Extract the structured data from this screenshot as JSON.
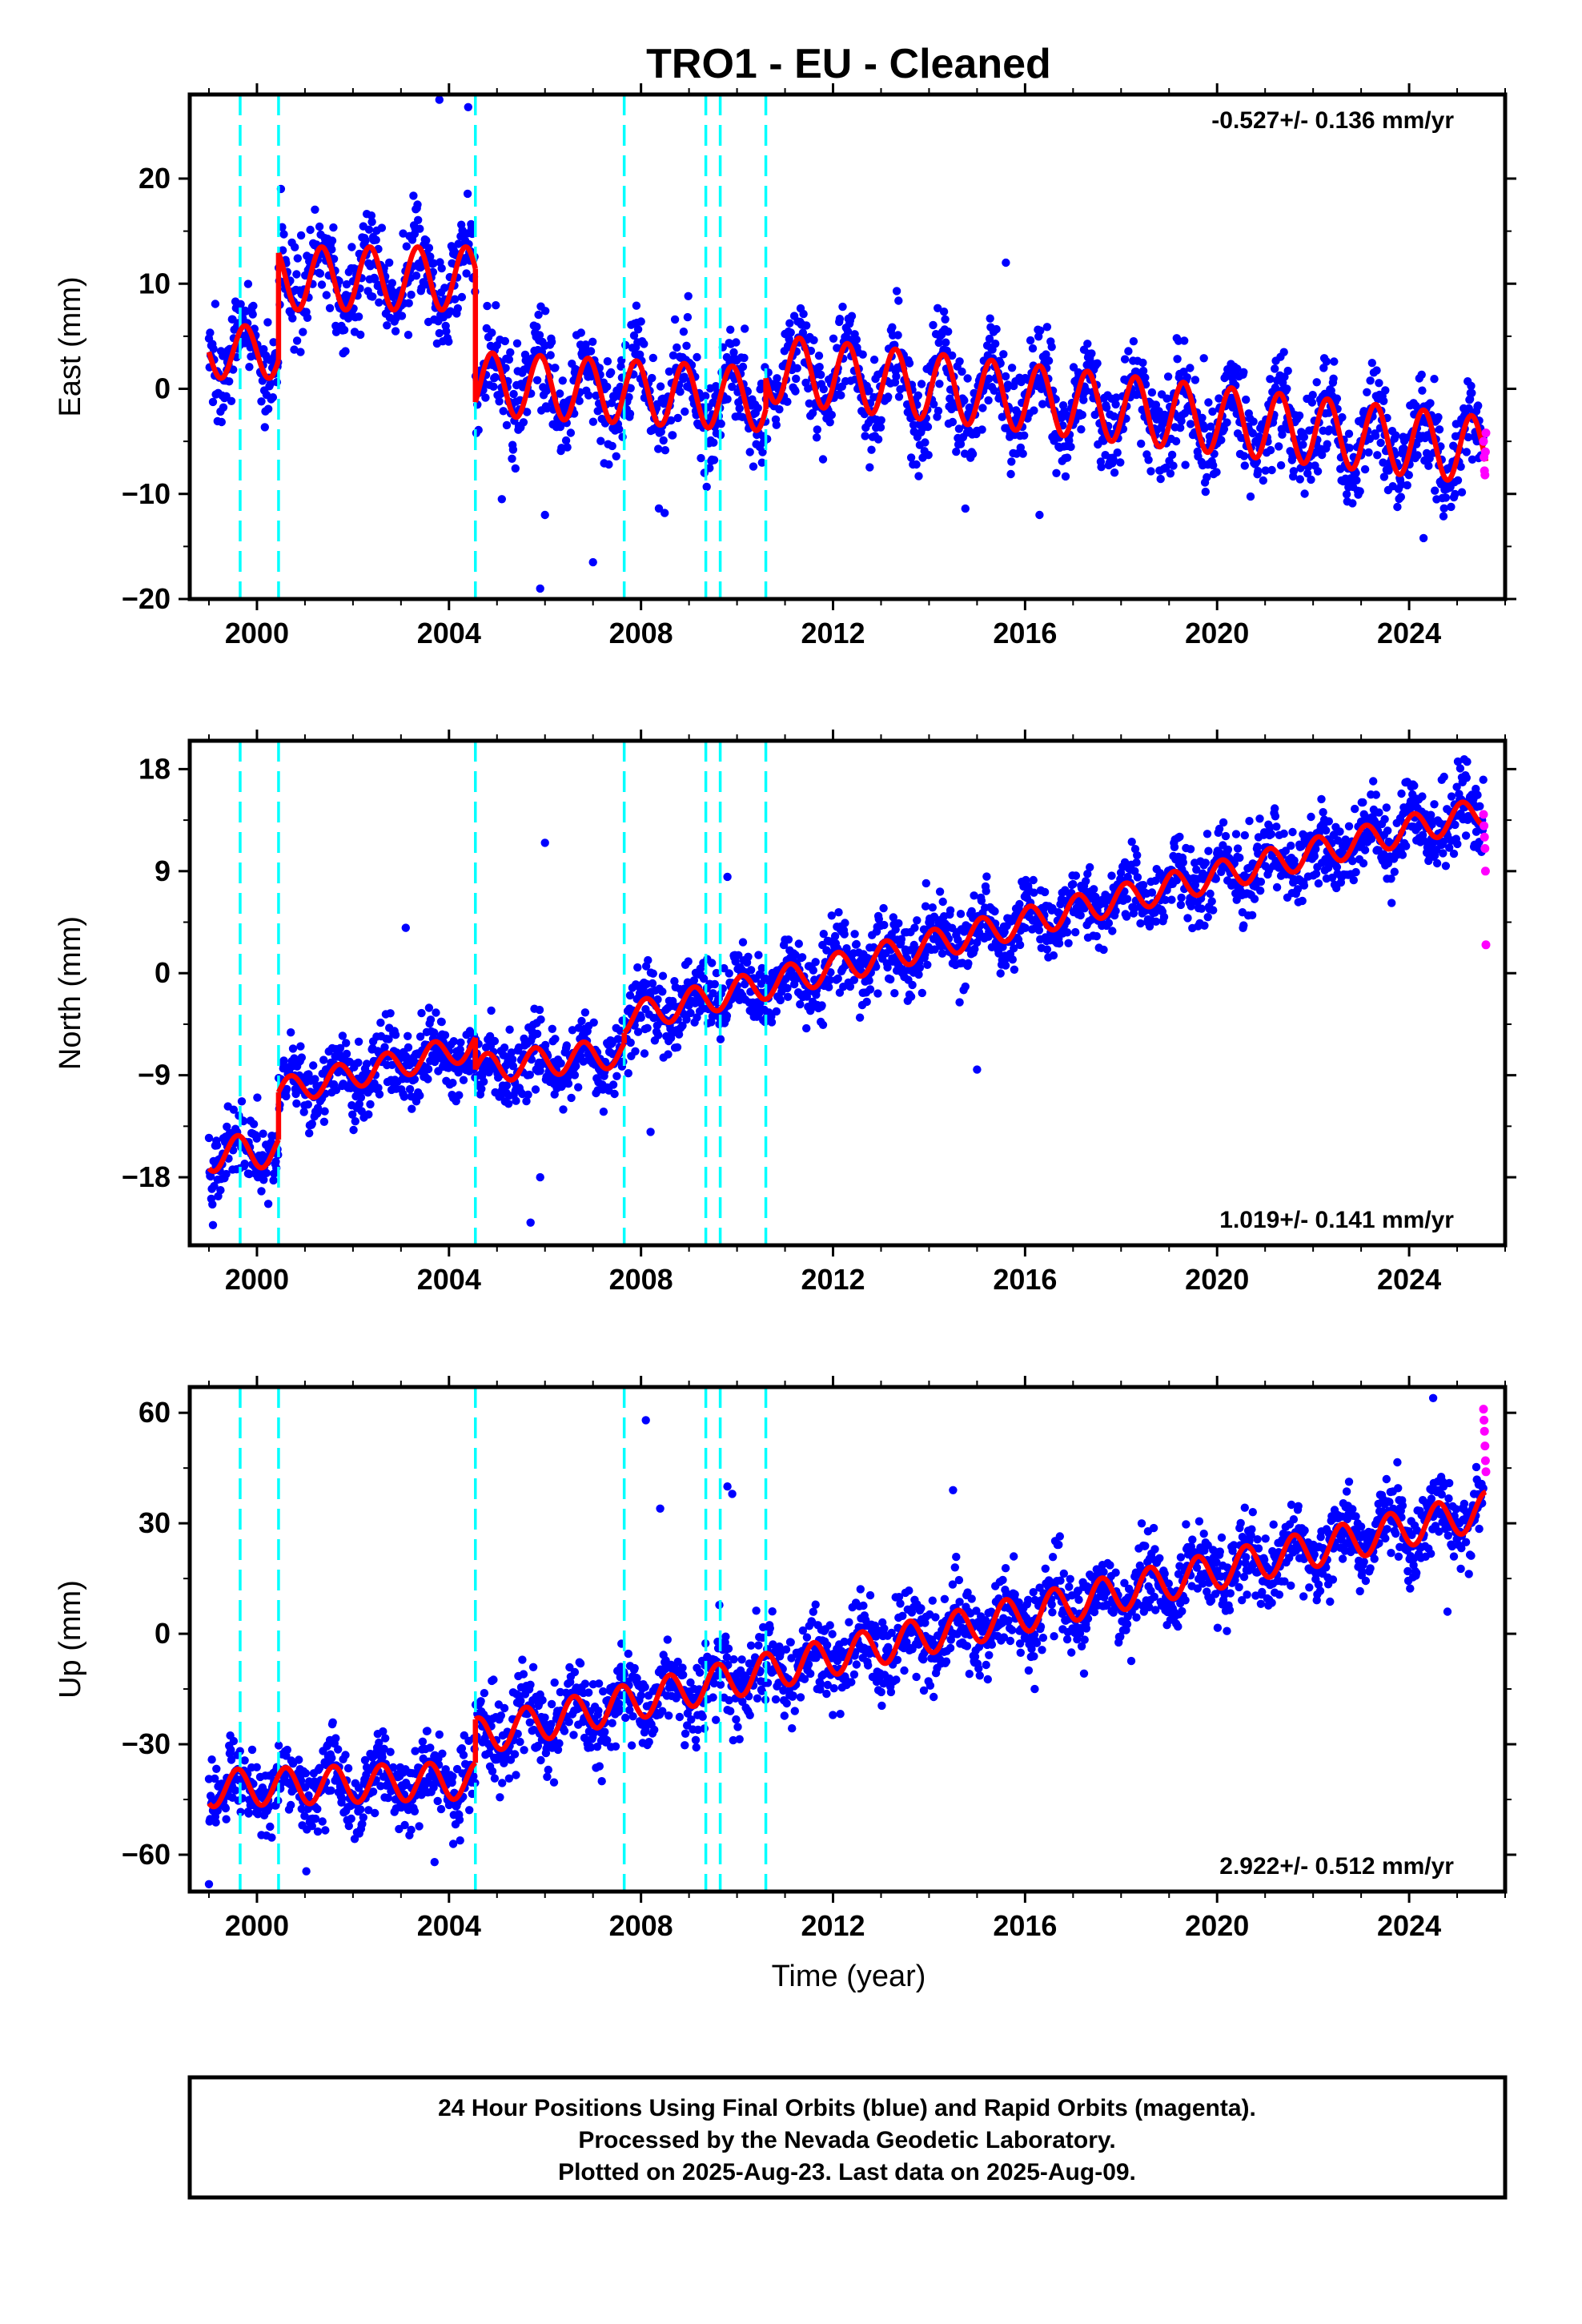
{
  "title": "TRO1  - EU - Cleaned",
  "xlabel": "Time (year)",
  "footer": {
    "line1": "24 Hour Positions Using Final Orbits (blue) and Rapid Orbits (magenta).",
    "line2": "Processed by the Nevada Geodetic Laboratory.",
    "line3": "Plotted on 2025-Aug-23. Last data on 2025-Aug-09."
  },
  "colors": {
    "final_orbits": "#0000ff",
    "rapid_orbits": "#ff00ff",
    "model": "#ff0000",
    "steps": "#00ffff"
  },
  "chart_data": [
    {
      "type": "scatter",
      "name": "east",
      "ylabel": "East (mm)",
      "rate": "-0.527+/- 0.136 mm/yr",
      "rate_position": "top-right",
      "xlim": [
        1998.6,
        2026.0
      ],
      "ylim": [
        -20,
        28
      ],
      "xticks": [
        2000,
        2004,
        2008,
        2012,
        2016,
        2020,
        2024
      ],
      "yticks": [
        -20,
        -10,
        0,
        10,
        20
      ],
      "step_epochs": [
        1999.65,
        2000.45,
        2004.55,
        2007.65,
        2009.35,
        2009.65,
        2010.6
      ],
      "model_segments": [
        {
          "from": 1999.0,
          "to": 2000.45,
          "offset": 3.5,
          "slope": 0,
          "amp": 2.5,
          "phase": 1999.75
        },
        {
          "from": 2000.45,
          "to": 2004.55,
          "offset": 10.5,
          "slope": 0,
          "amp": 3.0,
          "phase": 2000.35
        },
        {
          "from": 2004.55,
          "to": 2010.6,
          "offset": 0.5,
          "slope": -0.25,
          "amp": 3.0,
          "phase": 2004.9
        },
        {
          "from": 2010.6,
          "to": 2025.6,
          "offset": 2.0,
          "slope": -0.527,
          "amp": 3.2,
          "phase": 2011.3
        }
      ],
      "scatter_sigma": 2.3,
      "outliers": [
        [
          2005.9,
          -19.0
        ],
        [
          2007.0,
          -16.5
        ],
        [
          2005.1,
          -10.5
        ],
        [
          2003.8,
          27.5
        ],
        [
          2004.4,
          26.8
        ],
        [
          2015.6,
          12.0
        ],
        [
          2016.3,
          -12.0
        ],
        [
          2024.3,
          -14.2
        ],
        [
          2006.0,
          -12.0
        ]
      ],
      "rapid_points": [
        [
          2025.55,
          -5.0
        ],
        [
          2025.56,
          -6.5
        ],
        [
          2025.57,
          -7.8
        ],
        [
          2025.58,
          -8.2
        ],
        [
          2025.59,
          -6.0
        ],
        [
          2025.6,
          -4.2
        ]
      ]
    },
    {
      "type": "scatter",
      "name": "north",
      "ylabel": "North (mm)",
      "rate": "1.019+/- 0.141 mm/yr",
      "rate_position": "bottom-right",
      "xlim": [
        1998.6,
        2026.0
      ],
      "ylim": [
        -24,
        20.5
      ],
      "xticks": [
        2000,
        2004,
        2008,
        2012,
        2016,
        2020,
        2024
      ],
      "yticks": [
        -18,
        -9,
        0,
        9,
        18
      ],
      "step_epochs": [
        1999.65,
        2000.45,
        2004.55,
        2007.65,
        2009.35,
        2009.65,
        2010.6
      ],
      "model_segments": [
        {
          "from": 1999.0,
          "to": 2000.45,
          "offset": -16.0,
          "slope": 0.3,
          "amp": 1.5,
          "phase": 1999.6
        },
        {
          "from": 2000.45,
          "to": 2004.55,
          "offset": -10.5,
          "slope": 1.0,
          "amp": 1.2,
          "phase": 2000.7
        },
        {
          "from": 2004.55,
          "to": 2007.65,
          "offset": -8.5,
          "slope": 0.5,
          "amp": 1.3,
          "phase": 2004.8
        },
        {
          "from": 2007.65,
          "to": 2025.6,
          "offset": -4.0,
          "slope": 1.019,
          "amp": 1.3,
          "phase": 2008.1
        }
      ],
      "scatter_sigma": 1.6,
      "outliers": [
        [
          2005.7,
          -22.0
        ],
        [
          2006.0,
          11.5
        ],
        [
          2009.8,
          8.5
        ],
        [
          2015.0,
          -8.5
        ],
        [
          2003.1,
          4.0
        ],
        [
          2005.9,
          -18.0
        ],
        [
          2008.2,
          -14.0
        ]
      ],
      "rapid_points": [
        [
          2025.55,
          14.0
        ],
        [
          2025.56,
          13.0
        ],
        [
          2025.57,
          12.0
        ],
        [
          2025.58,
          11.0
        ],
        [
          2025.59,
          9.0
        ],
        [
          2025.6,
          2.5
        ]
      ]
    },
    {
      "type": "scatter",
      "name": "up",
      "ylabel": "Up (mm)",
      "rate": "2.922+/- 0.512 mm/yr",
      "rate_position": "bottom-right",
      "xlim": [
        1998.6,
        2026.0
      ],
      "ylim": [
        -70,
        67
      ],
      "xticks": [
        2000,
        2004,
        2008,
        2012,
        2016,
        2020,
        2024
      ],
      "yticks": [
        -60,
        -30,
        0,
        30,
        60
      ],
      "step_epochs": [
        1999.65,
        2000.45,
        2004.55,
        2007.65,
        2009.35,
        2009.65,
        2010.6
      ],
      "model_segments": [
        {
          "from": 1999.0,
          "to": 2004.55,
          "offset": -42.0,
          "slope": 0.4,
          "amp": 5.0,
          "phase": 1999.6
        },
        {
          "from": 2004.55,
          "to": 2025.6,
          "offset": -28.0,
          "slope": 2.922,
          "amp": 5.0,
          "phase": 2004.6
        }
      ],
      "scatter_sigma": 5.5,
      "outliers": [
        [
          2008.1,
          58.0
        ],
        [
          2008.4,
          34.0
        ],
        [
          2009.8,
          40.0
        ],
        [
          2009.9,
          38.0
        ],
        [
          1999.0,
          -68.0
        ],
        [
          2003.7,
          -62.0
        ],
        [
          2014.5,
          39.0
        ],
        [
          2016.2,
          -15.0
        ],
        [
          2024.8,
          6.0
        ],
        [
          2024.5,
          64.0
        ]
      ],
      "rapid_points": [
        [
          2025.55,
          61.0
        ],
        [
          2025.56,
          58.0
        ],
        [
          2025.57,
          55.0
        ],
        [
          2025.58,
          51.0
        ],
        [
          2025.59,
          47.0
        ],
        [
          2025.6,
          44.0
        ]
      ]
    }
  ]
}
